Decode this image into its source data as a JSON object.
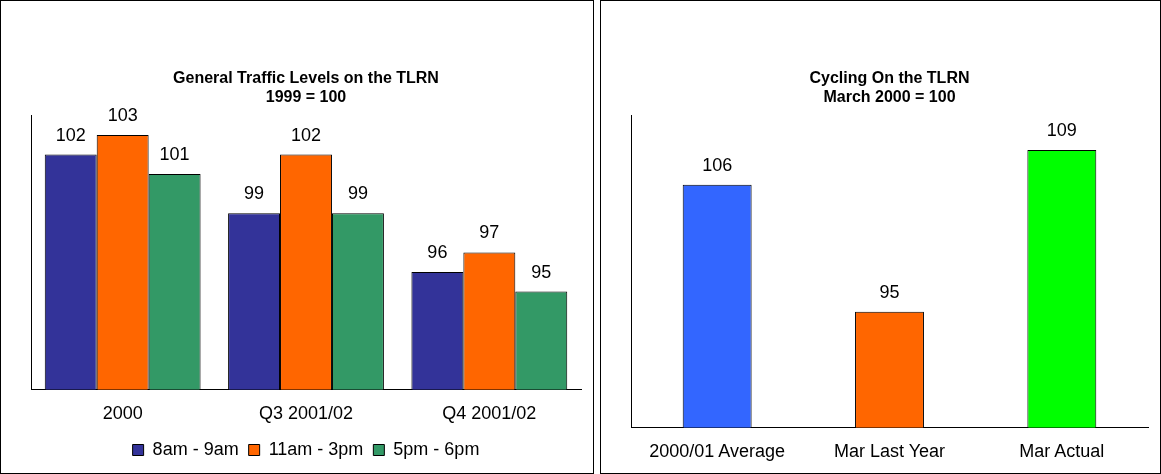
{
  "chart_data": [
    {
      "type": "bar",
      "title": "General Traffic Levels on the TLRN\n1999 = 100",
      "categories": [
        "2000",
        "Q3 2001/02",
        "Q4 2001/02"
      ],
      "series": [
        {
          "name": "8am - 9am",
          "color": "#333399",
          "values": [
            102,
            99,
            96
          ]
        },
        {
          "name": "11am - 3pm",
          "color": "#ff6600",
          "values": [
            103,
            102,
            97
          ]
        },
        {
          "name": "5pm - 6pm",
          "color": "#339966",
          "values": [
            101,
            99,
            95
          ]
        }
      ],
      "ylim": [
        90,
        104
      ],
      "data_labels": true,
      "grid": false,
      "legend": "bottom",
      "tick_labels": "x"
    },
    {
      "type": "bar",
      "title": "Cycling On the TLRN\nMarch 2000 = 100",
      "categories": [
        "2000/01 Average",
        "Mar Last Year",
        "Mar Actual"
      ],
      "values": [
        106,
        95,
        109
      ],
      "colors": [
        "#3366ff",
        "#ff6600",
        "#00ff00"
      ],
      "ylim": [
        85,
        112
      ],
      "data_labels": true,
      "grid": false,
      "legend": false,
      "tick_labels": "x"
    }
  ]
}
